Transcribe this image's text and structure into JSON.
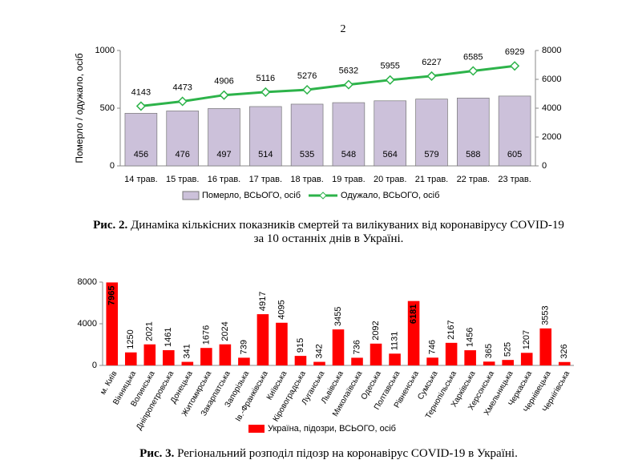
{
  "page_number": "2",
  "chart_data": [
    {
      "type": "combo",
      "ylabel": "Померло / одужало, осіб",
      "categories": [
        "14 трав.",
        "15 трав.",
        "16 трав.",
        "17 трав.",
        "18 трав.",
        "19 трав.",
        "20 трав.",
        "21 трав.",
        "22 трав.",
        "23 трав."
      ],
      "series": [
        {
          "name": "Померло, ВСЬОГО, осіб",
          "kind": "bar",
          "color": "#ccc1da",
          "values": [
            456,
            476,
            497,
            514,
            535,
            548,
            564,
            579,
            588,
            605
          ]
        },
        {
          "name": "Одужало, ВСЬОГО, осіб",
          "kind": "line",
          "color": "#2db34a",
          "axis": "y2",
          "values": [
            4143,
            4473,
            4906,
            5116,
            5276,
            5632,
            5955,
            6227,
            6585,
            6929
          ]
        }
      ],
      "ylim": [
        0,
        1000
      ],
      "yticks": [
        0,
        500,
        1000
      ],
      "y2lim": [
        0,
        8000
      ],
      "y2ticks": [
        0,
        2000,
        4000,
        6000,
        8000
      ]
    },
    {
      "type": "bar",
      "categories": [
        "м. Київ",
        "Вінницька",
        "Волинська",
        "Дніпропетровська",
        "Донецька",
        "Житомирська",
        "Закарпатська",
        "Запорізька",
        "Ів.-Франківська",
        "Київська",
        "Кіровоградська",
        "Луганська",
        "Львівська",
        "Миколаївська",
        "Одеська",
        "Полтавська",
        "Рівненська",
        "Сумська",
        "Тернопільська",
        "Харківська",
        "Херсонська",
        "Хмельницька",
        "Черкаська",
        "Чернівецька",
        "Чернігівська"
      ],
      "series": [
        {
          "name": "Україна, підозри, ВСЬОГО, осіб",
          "kind": "bar",
          "color": "#ff0000",
          "values": [
            7965,
            1250,
            2021,
            1461,
            341,
            1676,
            2024,
            739,
            4917,
            4095,
            915,
            342,
            3455,
            736,
            2092,
            1131,
            6181,
            746,
            2167,
            1456,
            365,
            525,
            1207,
            3553,
            326
          ]
        }
      ],
      "ylim": [
        0,
        8000
      ],
      "yticks": [
        0,
        4000,
        8000
      ]
    }
  ],
  "captions": [
    {
      "label": "Рис. 2.",
      "lines": [
        "Динаміка кількісних показників смертей та вилікуваних від коронавірусу COVID-19",
        "за 10 останніх днів в Україні."
      ]
    },
    {
      "label": "Рис. 3.",
      "lines": [
        "Регіональний розподіл підозр на  коронавірус COVID-19 в Україні."
      ]
    }
  ]
}
